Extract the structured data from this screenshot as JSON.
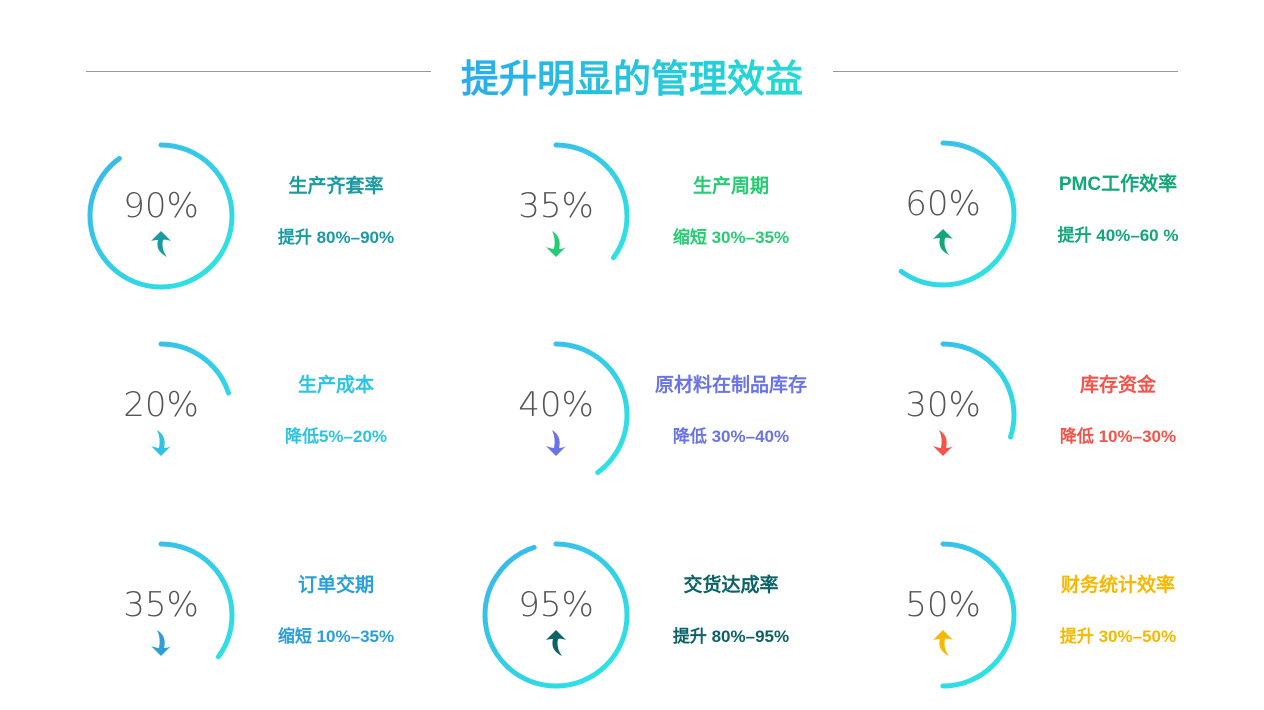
{
  "title": "提升明显的管理效益",
  "ring_gradient": [
    "#3ab4ea",
    "#2de8e2"
  ],
  "cards": [
    {
      "value": 90,
      "label": "90%",
      "name": "生产齐套率",
      "sub": "提升 80%–90%",
      "direction": "up",
      "color": "#1a9aa3"
    },
    {
      "value": 35,
      "label": "35%",
      "name": "生产周期",
      "sub": "缩短 30%–35%",
      "direction": "down",
      "color": "#25cc72"
    },
    {
      "value": 60,
      "label": "60%",
      "name": "PMC工作效率",
      "sub": "提升 40%–60 %",
      "direction": "up",
      "color": "#12a67a"
    },
    {
      "value": 20,
      "label": "20%",
      "name": "生产成本",
      "sub": "降低5%–20%",
      "direction": "down",
      "color": "#2cc4e4"
    },
    {
      "value": 40,
      "label": "40%",
      "name": "原材料在制品库存",
      "sub": "降低 30%–40%",
      "direction": "down",
      "color": "#6a74e6"
    },
    {
      "value": 30,
      "label": "30%",
      "name": "库存资金",
      "sub": "降低 10%–30%",
      "direction": "down",
      "color": "#f4544a"
    },
    {
      "value": 35,
      "label": "35%",
      "name": "订单交期",
      "sub": "缩短 10%–35%",
      "direction": "down",
      "color": "#2a9fd8"
    },
    {
      "value": 95,
      "label": "95%",
      "name": "交货达成率",
      "sub": "提升 80%–95%",
      "direction": "up",
      "color": "#0c6266"
    },
    {
      "value": 50,
      "label": "50%",
      "name": "财务统计效率",
      "sub": "提升 30%–50%",
      "direction": "up",
      "color": "#f6b800"
    }
  ]
}
